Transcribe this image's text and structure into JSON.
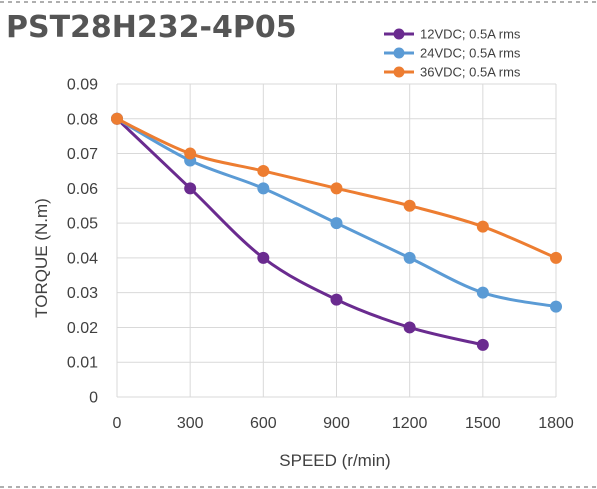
{
  "chart_data": {
    "type": "line",
    "title": "PST28H232-4P05",
    "xlabel": "SPEED (r/min)",
    "ylabel": "TORQUE (N.m)",
    "x": [
      0,
      300,
      600,
      900,
      1200,
      1500,
      1800
    ],
    "x_ticks": [
      "0",
      "300",
      "600",
      "900",
      "1200",
      "1500",
      "1800"
    ],
    "y_ticks": [
      "0",
      "0.01",
      "0.02",
      "0.03",
      "0.04",
      "0.05",
      "0.06",
      "0.07",
      "0.08",
      "0.09"
    ],
    "xlim": [
      0,
      1800
    ],
    "ylim": [
      0,
      0.09
    ],
    "grid": true,
    "legend_position": "top-right",
    "series": [
      {
        "name": "12VDC; 0.5A rms",
        "color": "#6a2b8f",
        "points": [
          [
            0,
            0.08
          ],
          [
            300,
            0.06
          ],
          [
            600,
            0.04
          ],
          [
            900,
            0.028
          ],
          [
            1200,
            0.02
          ],
          [
            1500,
            0.015
          ]
        ]
      },
      {
        "name": "24VDC; 0.5A rms",
        "color": "#5b9bd5",
        "points": [
          [
            0,
            0.08
          ],
          [
            300,
            0.068
          ],
          [
            600,
            0.06
          ],
          [
            900,
            0.05
          ],
          [
            1200,
            0.04
          ],
          [
            1500,
            0.03
          ],
          [
            1800,
            0.026
          ]
        ]
      },
      {
        "name": "36VDC; 0.5A rms",
        "color": "#ed7d31",
        "points": [
          [
            0,
            0.08
          ],
          [
            300,
            0.07
          ],
          [
            600,
            0.065
          ],
          [
            900,
            0.06
          ],
          [
            1200,
            0.055
          ],
          [
            1500,
            0.049
          ],
          [
            1800,
            0.04
          ]
        ]
      }
    ]
  }
}
